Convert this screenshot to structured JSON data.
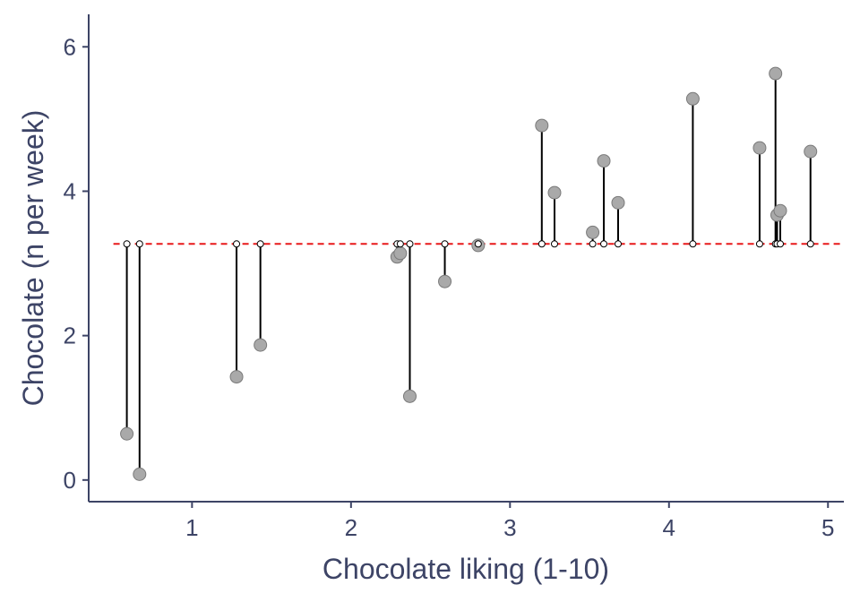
{
  "chart_data": {
    "type": "scatter",
    "title": "",
    "xlabel": "Chocolate liking (1-10)",
    "ylabel": "Chocolate (n per week)",
    "xlim": [
      0.35,
      5.1
    ],
    "ylim": [
      -0.3,
      6.45
    ],
    "x_ticks": [
      1,
      2,
      3,
      4,
      5
    ],
    "y_ticks": [
      0,
      2,
      4,
      6
    ],
    "mean_line": 3.27,
    "grid": false,
    "colors": {
      "axis": "#3d4466",
      "mean_line": "#e8191a",
      "point_fill": "#a9a9a9",
      "point_stroke": "#7a7a7a",
      "segment": "#000000"
    },
    "points": [
      {
        "x": 0.59,
        "y": 0.64
      },
      {
        "x": 0.67,
        "y": 0.08
      },
      {
        "x": 1.28,
        "y": 1.43
      },
      {
        "x": 1.43,
        "y": 1.87
      },
      {
        "x": 2.29,
        "y": 3.09
      },
      {
        "x": 2.31,
        "y": 3.14
      },
      {
        "x": 2.37,
        "y": 1.16
      },
      {
        "x": 2.59,
        "y": 2.75
      },
      {
        "x": 2.8,
        "y": 3.25
      },
      {
        "x": 3.2,
        "y": 4.91
      },
      {
        "x": 3.28,
        "y": 3.98
      },
      {
        "x": 3.52,
        "y": 3.43
      },
      {
        "x": 3.59,
        "y": 4.42
      },
      {
        "x": 3.68,
        "y": 3.84
      },
      {
        "x": 4.15,
        "y": 5.28
      },
      {
        "x": 4.57,
        "y": 4.6
      },
      {
        "x": 4.67,
        "y": 5.63
      },
      {
        "x": 4.68,
        "y": 3.67
      },
      {
        "x": 4.7,
        "y": 3.73
      },
      {
        "x": 4.89,
        "y": 4.55
      }
    ]
  }
}
